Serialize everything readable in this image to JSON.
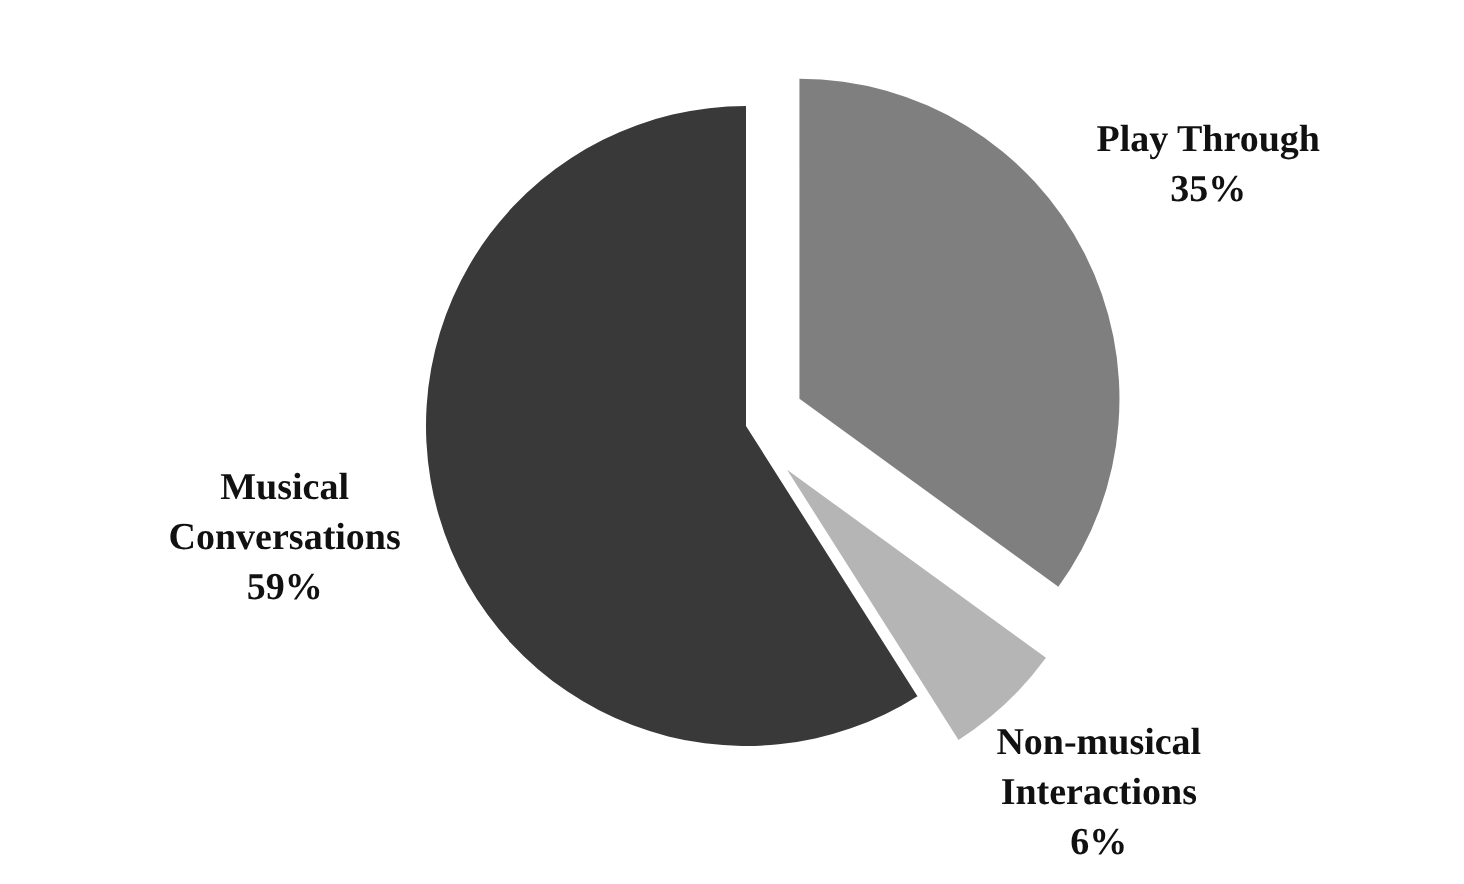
{
  "chart_data": {
    "type": "pie",
    "categories": [
      "Play Through",
      "Non-musical Interactions",
      "Musical Conversations"
    ],
    "values": [
      35,
      6,
      59
    ],
    "value_labels": [
      "35%",
      "6%",
      "59%"
    ],
    "colors": [
      "#7f7f7f",
      "#b5b5b5",
      "#393939"
    ],
    "data_labels": true,
    "legend": false
  }
}
